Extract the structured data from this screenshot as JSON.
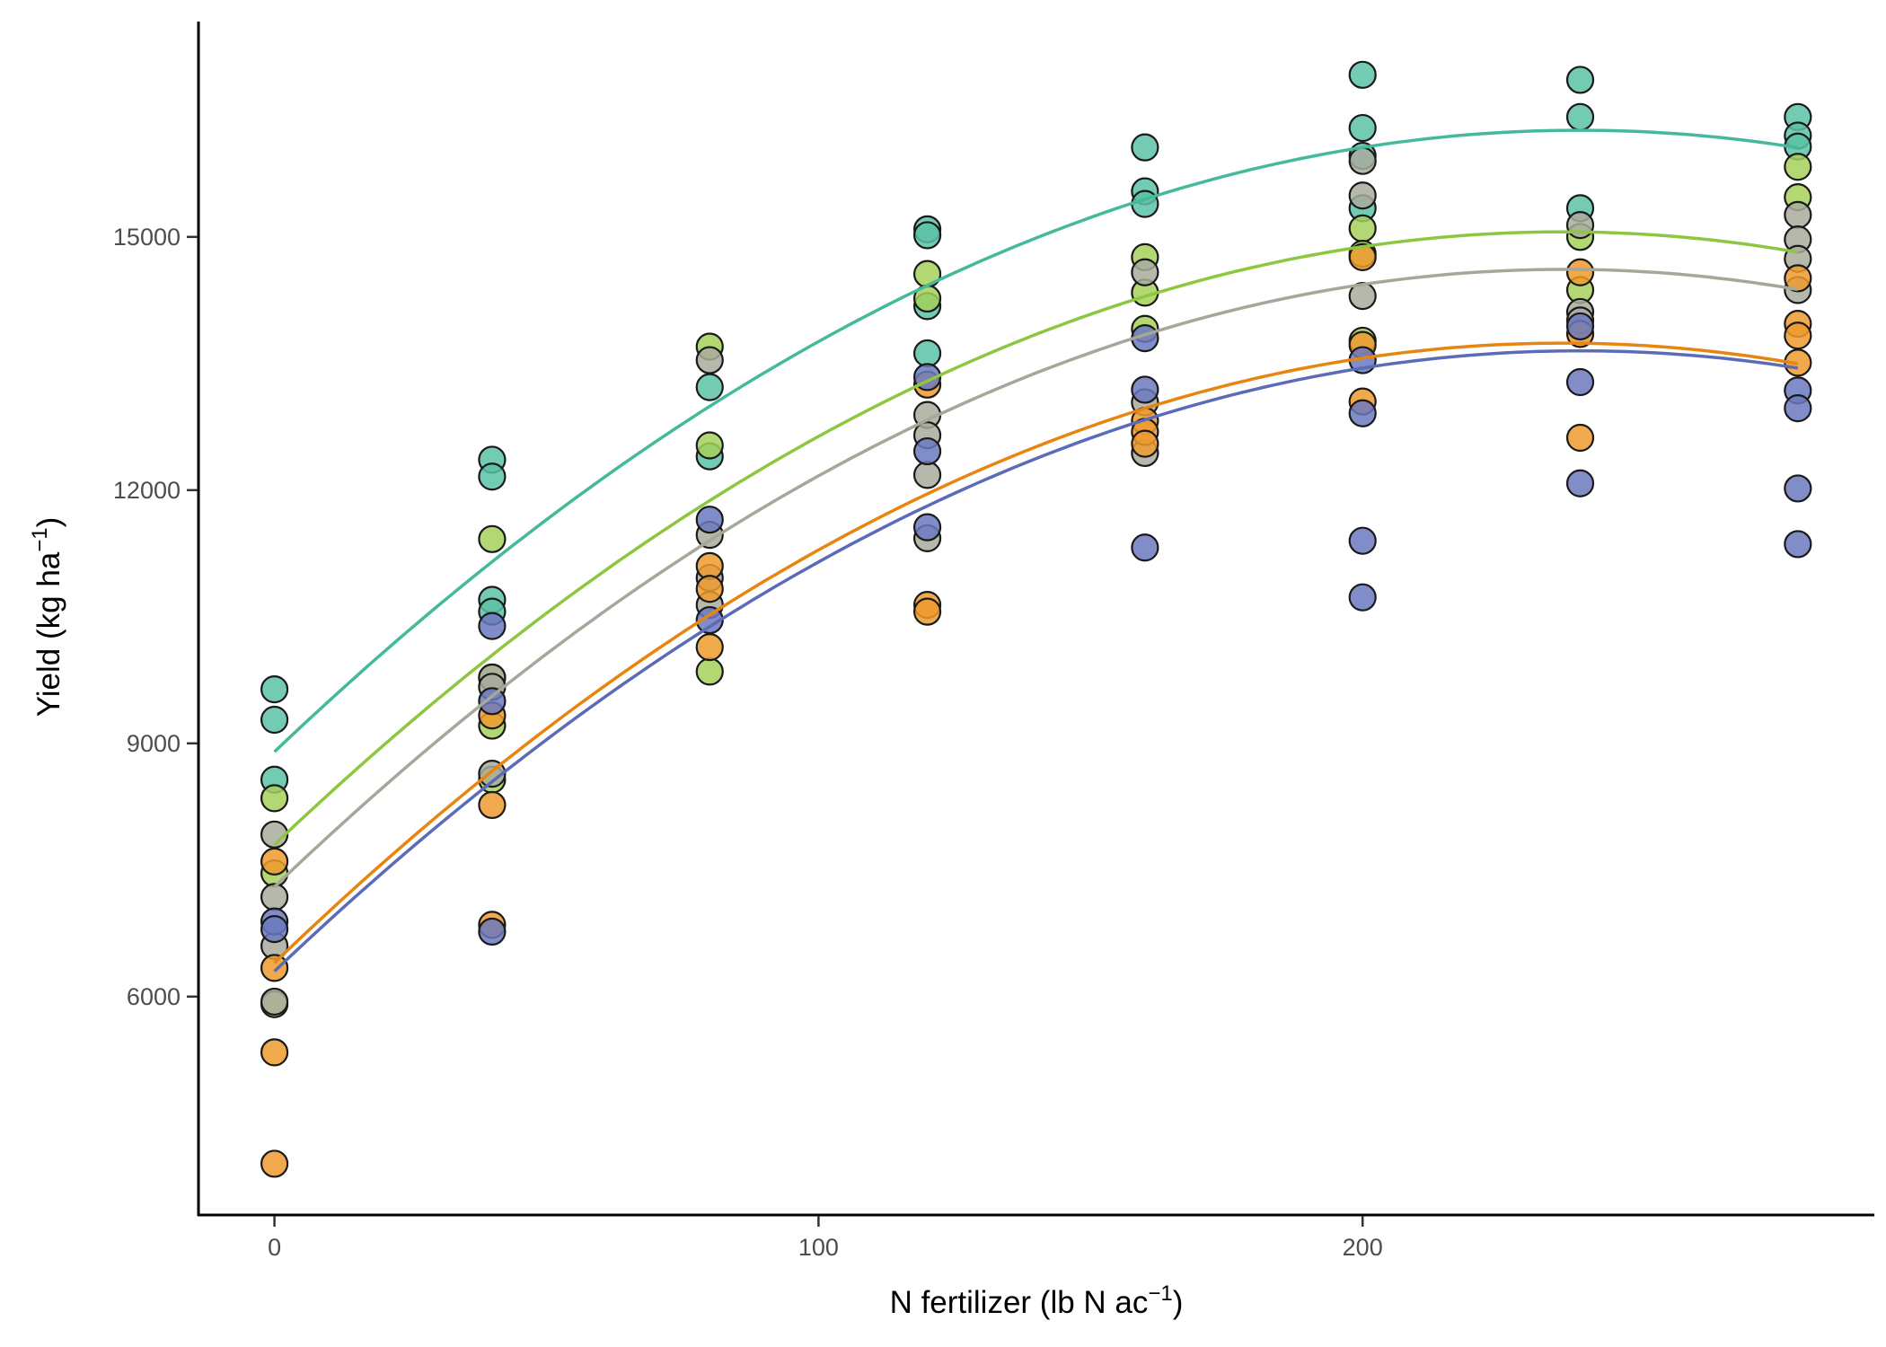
{
  "chart_data": {
    "type": "scatter",
    "title": "",
    "xlabel": {
      "main": "N fertilizer (lb N ac",
      "sup": "−1",
      "close": ")"
    },
    "ylabel": {
      "main": "Yield (kg ha",
      "sup": "−1",
      "close": ")"
    },
    "xlim": [
      -14,
      294
    ],
    "ylim": [
      3650,
      17500
    ],
    "x_ticks": [
      0,
      100,
      200
    ],
    "x_tick_labels": [
      "0",
      "100",
      "200"
    ],
    "y_ticks": [
      6000,
      9000,
      12000,
      15000
    ],
    "y_tick_labels": [
      "6000",
      "9000",
      "12000",
      "15000"
    ],
    "grid": false,
    "legend": "none",
    "series": [
      {
        "name": "teal",
        "line_color": "#45b99c",
        "fill_color": "#5cc2a6",
        "fit": {
          "intercept": 8900,
          "linear": 61.4,
          "quadratic": -0.128
        },
        "points": [
          [
            0,
            9640
          ],
          [
            0,
            9280
          ],
          [
            0,
            8570
          ],
          [
            40,
            12360
          ],
          [
            40,
            12160
          ],
          [
            40,
            10700
          ],
          [
            40,
            10560
          ],
          [
            80,
            13220
          ],
          [
            80,
            12400
          ],
          [
            120,
            15090
          ],
          [
            120,
            15020
          ],
          [
            120,
            14180
          ],
          [
            120,
            13620
          ],
          [
            160,
            16060
          ],
          [
            160,
            15540
          ],
          [
            160,
            15390
          ],
          [
            200,
            16920
          ],
          [
            200,
            16290
          ],
          [
            200,
            15960
          ],
          [
            200,
            15340
          ],
          [
            240,
            16860
          ],
          [
            240,
            16420
          ],
          [
            240,
            15340
          ],
          [
            280,
            16420
          ],
          [
            280,
            16200
          ],
          [
            280,
            16070
          ]
        ]
      },
      {
        "name": "green",
        "line_color": "#8dc63f",
        "fill_color": "#a5d05a",
        "fit": {
          "intercept": 7800,
          "linear": 61.3,
          "quadratic": -0.1294
        },
        "points": [
          [
            0,
            8350
          ],
          [
            0,
            7460
          ],
          [
            0,
            5910
          ],
          [
            40,
            11420
          ],
          [
            40,
            9780
          ],
          [
            40,
            9210
          ],
          [
            40,
            8570
          ],
          [
            80,
            13700
          ],
          [
            80,
            12530
          ],
          [
            80,
            9850
          ],
          [
            120,
            14560
          ],
          [
            120,
            14270
          ],
          [
            160,
            14760
          ],
          [
            160,
            14340
          ],
          [
            160,
            13910
          ],
          [
            200,
            15100
          ],
          [
            200,
            14800
          ],
          [
            200,
            13770
          ],
          [
            240,
            15000
          ],
          [
            240,
            14370
          ],
          [
            280,
            15830
          ],
          [
            280,
            15470
          ]
        ]
      },
      {
        "name": "grey",
        "line_color": "#a5a899",
        "fill_color": "#a9ac9d",
        "fit": {
          "intercept": 7300,
          "linear": 61.7,
          "quadratic": -0.1301
        },
        "points": [
          [
            0,
            7920
          ],
          [
            0,
            7180
          ],
          [
            0,
            6600
          ],
          [
            0,
            5940
          ],
          [
            40,
            9780
          ],
          [
            40,
            9670
          ],
          [
            40,
            8640
          ],
          [
            80,
            13540
          ],
          [
            80,
            11470
          ],
          [
            80,
            10960
          ],
          [
            80,
            10640
          ],
          [
            120,
            12890
          ],
          [
            120,
            12650
          ],
          [
            120,
            12180
          ],
          [
            120,
            11430
          ],
          [
            160,
            14580
          ],
          [
            160,
            13040
          ],
          [
            160,
            12440
          ],
          [
            200,
            15900
          ],
          [
            200,
            15490
          ],
          [
            200,
            14300
          ],
          [
            240,
            15140
          ],
          [
            240,
            14110
          ],
          [
            240,
            14010
          ],
          [
            280,
            15260
          ],
          [
            280,
            14970
          ],
          [
            280,
            14740
          ],
          [
            280,
            14370
          ]
        ]
      },
      {
        "name": "orange",
        "line_color": "#e88510",
        "fill_color": "#ee9a2e",
        "fit": {
          "intercept": 6400,
          "linear": 62.0,
          "quadratic": -0.1309
        },
        "points": [
          [
            0,
            7600
          ],
          [
            0,
            6340
          ],
          [
            0,
            5340
          ],
          [
            0,
            4020
          ],
          [
            40,
            9330
          ],
          [
            40,
            8270
          ],
          [
            40,
            6850
          ],
          [
            80,
            11100
          ],
          [
            80,
            10830
          ],
          [
            80,
            10140
          ],
          [
            120,
            13250
          ],
          [
            120,
            10640
          ],
          [
            120,
            10560
          ],
          [
            160,
            12820
          ],
          [
            160,
            12690
          ],
          [
            160,
            12550
          ],
          [
            200,
            14760
          ],
          [
            200,
            13720
          ],
          [
            200,
            13050
          ],
          [
            240,
            14580
          ],
          [
            240,
            13850
          ],
          [
            240,
            12620
          ],
          [
            280,
            14510
          ],
          [
            280,
            13970
          ],
          [
            280,
            13830
          ],
          [
            280,
            13510
          ]
        ]
      },
      {
        "name": "blue",
        "line_color": "#5b6bb7",
        "fill_color": "#6b79be",
        "fit": {
          "intercept": 6300,
          "linear": 61.25,
          "quadratic": -0.1276
        },
        "points": [
          [
            0,
            6890
          ],
          [
            0,
            6800
          ],
          [
            40,
            10390
          ],
          [
            40,
            9500
          ],
          [
            40,
            6770
          ],
          [
            80,
            11650
          ],
          [
            80,
            10460
          ],
          [
            120,
            13340
          ],
          [
            120,
            12460
          ],
          [
            120,
            11560
          ],
          [
            160,
            13800
          ],
          [
            160,
            13190
          ],
          [
            160,
            11320
          ],
          [
            200,
            13540
          ],
          [
            200,
            12910
          ],
          [
            200,
            11400
          ],
          [
            200,
            10730
          ],
          [
            240,
            13940
          ],
          [
            240,
            13280
          ],
          [
            240,
            12080
          ],
          [
            280,
            13180
          ],
          [
            280,
            12970
          ],
          [
            280,
            12020
          ],
          [
            280,
            11360
          ]
        ]
      }
    ],
    "x_range_fit": [
      0,
      280
    ]
  }
}
